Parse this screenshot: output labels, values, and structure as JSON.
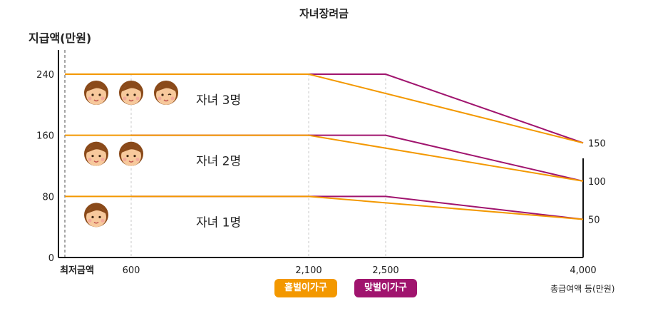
{
  "chart_data": {
    "type": "line",
    "title": "자녀장려금",
    "ylabel": "지급액(만원)",
    "xlabel": "총급여액 등(만원)",
    "x_ticks": [
      "최저금액",
      "600",
      "2,100",
      "2,500",
      "4,000"
    ],
    "y_ticks": [
      "0",
      "80",
      "160",
      "240"
    ],
    "right_ticks": [
      "50",
      "100",
      "150"
    ],
    "ylim": [
      0,
      280
    ],
    "groups": [
      {
        "label": "자녀 1명",
        "children": 1,
        "single": [
          [
            "최저금액",
            80
          ],
          [
            "2,100",
            80
          ],
          [
            "4,000",
            50
          ]
        ],
        "dual": [
          [
            "600",
            80
          ],
          [
            "2,500",
            80
          ],
          [
            "4,000",
            50
          ]
        ]
      },
      {
        "label": "자녀 2명",
        "children": 2,
        "single": [
          [
            "최저금액",
            160
          ],
          [
            "2,100",
            160
          ],
          [
            "4,000",
            100
          ]
        ],
        "dual": [
          [
            "600",
            160
          ],
          [
            "2,500",
            160
          ],
          [
            "4,000",
            100
          ]
        ]
      },
      {
        "label": "자녀 3명",
        "children": 3,
        "single": [
          [
            "최저금액",
            240
          ],
          [
            "2,100",
            240
          ],
          [
            "4,000",
            150
          ]
        ],
        "dual": [
          [
            "600",
            240
          ],
          [
            "2,500",
            240
          ],
          [
            "4,000",
            150
          ]
        ]
      }
    ],
    "series": [
      {
        "name": "홑벌이가구",
        "color": "#f39800"
      },
      {
        "name": "맞벌이가구",
        "color": "#a0146e"
      }
    ],
    "grid": "dashed vertical lines at x ticks"
  }
}
